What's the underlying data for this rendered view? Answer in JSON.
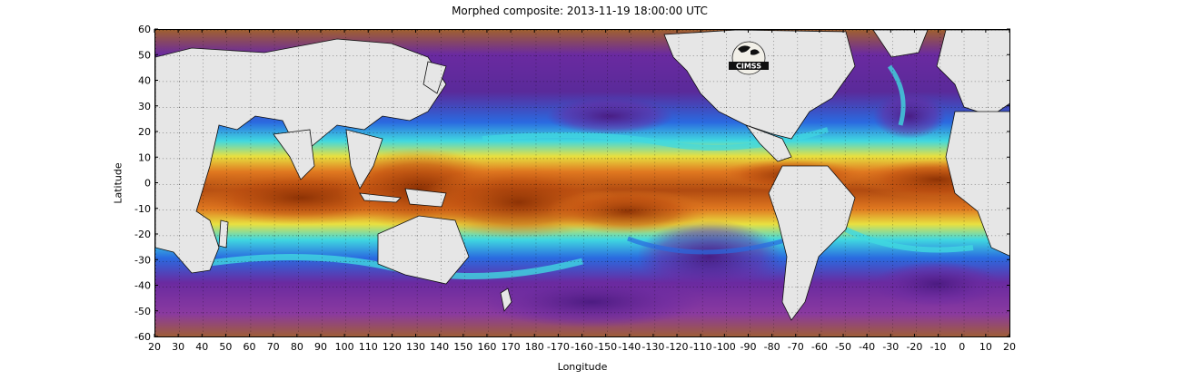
{
  "title": "Morphed composite: 2013-11-19 18:00:00 UTC",
  "xlabel": "Longitude",
  "ylabel": "Latitude",
  "x_ticks": [
    "20",
    "30",
    "40",
    "50",
    "60",
    "70",
    "80",
    "90",
    "100",
    "110",
    "120",
    "130",
    "140",
    "150",
    "160",
    "170",
    "180",
    "-170",
    "-160",
    "-150",
    "-140",
    "-130",
    "-120",
    "-110",
    "-100",
    "-90",
    "-80",
    "-70",
    "-60",
    "-50",
    "-40",
    "-30",
    "-20",
    "-10",
    "0",
    "10",
    "20"
  ],
  "y_ticks": [
    "60",
    "50",
    "40",
    "30",
    "20",
    "10",
    "0",
    "-10",
    "-20",
    "-30",
    "-40",
    "-50",
    "-60"
  ],
  "logo_text": "CIMSS",
  "grid": "dotted",
  "colors": {
    "deep_purple": "#3a1a6a",
    "purple": "#7a2aa0",
    "blue": "#2a6ae0",
    "cyan": "#40d8e0",
    "green": "#70e070",
    "yellow": "#e8e040",
    "orange": "#e07820",
    "dark_orange": "#a04008",
    "land": "#e6e6e6",
    "high_lat_brown": "#a06030"
  }
}
